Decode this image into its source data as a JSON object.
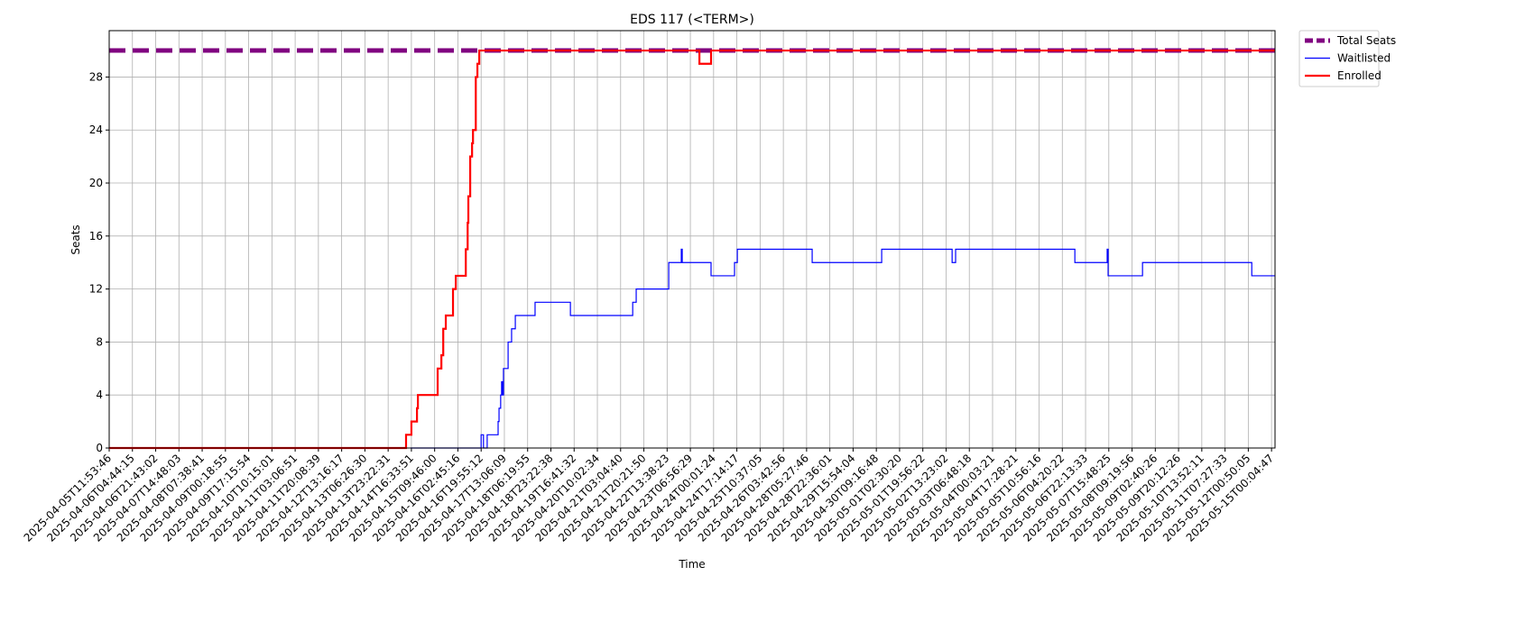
{
  "chart_data": {
    "type": "line",
    "title": "EDS 117 (<TERM>)",
    "x_label": "Time",
    "y_label": "Seats",
    "drawstyle": "steps-post",
    "grid": true,
    "legend_position": "outside-upper-right",
    "xlim": [
      0,
      50.15
    ],
    "ylim": [
      0,
      31.5
    ],
    "yticks": [
      0,
      4,
      8,
      12,
      16,
      20,
      24,
      28
    ],
    "xticks": [
      {
        "value": 0,
        "label": "2025-04-05T11:53:46"
      },
      {
        "value": 1,
        "label": "2025-04-06T04:44:15"
      },
      {
        "value": 2,
        "label": "2025-04-06T21:43:02"
      },
      {
        "value": 3,
        "label": "2025-04-07T14:48:03"
      },
      {
        "value": 4,
        "label": "2025-04-08T07:38:41"
      },
      {
        "value": 5,
        "label": "2025-04-09T00:18:55"
      },
      {
        "value": 6,
        "label": "2025-04-09T17:15:54"
      },
      {
        "value": 7,
        "label": "2025-04-10T10:15:01"
      },
      {
        "value": 8,
        "label": "2025-04-11T03:06:51"
      },
      {
        "value": 9,
        "label": "2025-04-11T20:08:39"
      },
      {
        "value": 10,
        "label": "2025-04-12T13:16:17"
      },
      {
        "value": 11,
        "label": "2025-04-13T06:26:30"
      },
      {
        "value": 12,
        "label": "2025-04-13T23:22:31"
      },
      {
        "value": 13,
        "label": "2025-04-14T16:33:51"
      },
      {
        "value": 14,
        "label": "2025-04-15T09:46:00"
      },
      {
        "value": 15,
        "label": "2025-04-16T02:45:16"
      },
      {
        "value": 16,
        "label": "2025-04-16T19:55:12"
      },
      {
        "value": 17,
        "label": "2025-04-17T13:06:09"
      },
      {
        "value": 18,
        "label": "2025-04-18T06:19:55"
      },
      {
        "value": 19,
        "label": "2025-04-18T23:22:38"
      },
      {
        "value": 20,
        "label": "2025-04-19T16:41:32"
      },
      {
        "value": 21,
        "label": "2025-04-20T10:02:34"
      },
      {
        "value": 22,
        "label": "2025-04-21T03:04:40"
      },
      {
        "value": 23,
        "label": "2025-04-21T20:21:50"
      },
      {
        "value": 24,
        "label": "2025-04-22T13:38:23"
      },
      {
        "value": 25,
        "label": "2025-04-23T06:56:29"
      },
      {
        "value": 26,
        "label": "2025-04-24T00:01:24"
      },
      {
        "value": 27,
        "label": "2025-04-24T17:14:17"
      },
      {
        "value": 28,
        "label": "2025-04-25T10:37:05"
      },
      {
        "value": 29,
        "label": "2025-04-26T03:42:56"
      },
      {
        "value": 30,
        "label": "2025-04-28T05:27:46"
      },
      {
        "value": 31,
        "label": "2025-04-28T22:36:01"
      },
      {
        "value": 32,
        "label": "2025-04-29T15:54:04"
      },
      {
        "value": 33,
        "label": "2025-04-30T09:16:48"
      },
      {
        "value": 34,
        "label": "2025-05-01T02:30:20"
      },
      {
        "value": 35,
        "label": "2025-05-01T19:56:22"
      },
      {
        "value": 36,
        "label": "2025-05-02T13:23:02"
      },
      {
        "value": 37,
        "label": "2025-05-03T06:48:18"
      },
      {
        "value": 38,
        "label": "2025-05-04T00:03:21"
      },
      {
        "value": 39,
        "label": "2025-05-04T17:28:21"
      },
      {
        "value": 40,
        "label": "2025-05-05T10:56:16"
      },
      {
        "value": 41,
        "label": "2025-05-06T04:20:22"
      },
      {
        "value": 42,
        "label": "2025-05-06T22:13:33"
      },
      {
        "value": 43,
        "label": "2025-05-07T15:48:25"
      },
      {
        "value": 44,
        "label": "2025-05-08T09:19:56"
      },
      {
        "value": 45,
        "label": "2025-05-09T02:40:26"
      },
      {
        "value": 46,
        "label": "2025-05-09T20:12:26"
      },
      {
        "value": 47,
        "label": "2025-05-10T13:52:11"
      },
      {
        "value": 48,
        "label": "2025-05-11T07:27:33"
      },
      {
        "value": 49,
        "label": "2025-05-12T00:50:05"
      },
      {
        "value": 50,
        "label": "2025-05-15T00:04:47"
      }
    ],
    "series": [
      {
        "name": "Total Seats",
        "color": "#800080",
        "width": 5,
        "dash": true,
        "x": [
          0,
          50.15
        ],
        "values": [
          30,
          30
        ]
      },
      {
        "name": "Waitlisted",
        "color": "#0000ff",
        "width": 1.2,
        "dash": false,
        "x": [
          12.97,
          16.0,
          16.1,
          16.26,
          16.73,
          16.77,
          16.84,
          16.88,
          16.92,
          16.96,
          17.16,
          17.31,
          17.47,
          18.32,
          19.84,
          22.52,
          22.67,
          24.07,
          24.61,
          24.65,
          25.89,
          26.9,
          27.02,
          30.24,
          33.23,
          36.26,
          36.41,
          41.54,
          42.93,
          42.97,
          44.45,
          49.15,
          50.15
        ],
        "values": [
          0,
          1,
          0,
          1,
          2,
          3,
          4,
          5,
          4,
          6,
          8,
          9,
          10,
          11,
          10,
          11,
          12,
          14,
          15,
          14,
          13,
          14,
          15,
          14,
          15,
          14,
          15,
          14,
          15,
          13,
          14,
          13,
          13
        ]
      },
      {
        "name": "Enrolled",
        "color": "#ff0000",
        "width": 2.2,
        "dash": false,
        "x": [
          0,
          12.77,
          13.0,
          13.24,
          13.28,
          14.13,
          14.29,
          14.37,
          14.48,
          14.79,
          14.91,
          15.34,
          15.42,
          15.45,
          15.53,
          15.61,
          15.65,
          15.77,
          15.84,
          15.92,
          25.39,
          25.89,
          50.15
        ],
        "values": [
          0,
          1,
          2,
          3,
          4,
          6,
          7,
          9,
          10,
          12,
          13,
          15,
          17,
          19,
          22,
          23,
          24,
          28,
          29,
          30,
          29,
          30,
          30
        ]
      }
    ]
  }
}
